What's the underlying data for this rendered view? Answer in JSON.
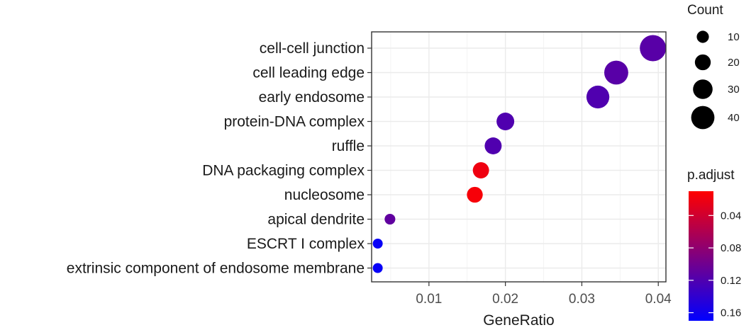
{
  "chart_data": {
    "type": "scatter",
    "xlabel": "GeneRatio",
    "ylabel": "",
    "xlim": [
      0.0025,
      0.041
    ],
    "x_ticks": [
      0.01,
      0.02,
      0.03,
      0.04
    ],
    "x_tick_labels": [
      "0.01",
      "0.02",
      "0.03",
      "0.04"
    ],
    "grid": true,
    "categories": [
      "cell-cell junction",
      "cell leading edge",
      "early endosome",
      "protein-DNA complex",
      "ruffle",
      "DNA packaging complex",
      "nucleosome",
      "apical dendrite",
      "ESCRT I complex",
      "extrinsic component of endosome membrane"
    ],
    "points": [
      {
        "term": "cell-cell junction",
        "gene_ratio": 0.0393,
        "count": 48,
        "p_adjust": 0.115
      },
      {
        "term": "cell leading edge",
        "gene_ratio": 0.0345,
        "count": 42,
        "p_adjust": 0.115
      },
      {
        "term": "early endosome",
        "gene_ratio": 0.0321,
        "count": 39,
        "p_adjust": 0.12
      },
      {
        "term": "protein-DNA complex",
        "gene_ratio": 0.02,
        "count": 25,
        "p_adjust": 0.12
      },
      {
        "term": "ruffle",
        "gene_ratio": 0.0184,
        "count": 23,
        "p_adjust": 0.12
      },
      {
        "term": "DNA packaging complex",
        "gene_ratio": 0.0168,
        "count": 21,
        "p_adjust": 0.02
      },
      {
        "term": "nucleosome",
        "gene_ratio": 0.016,
        "count": 20,
        "p_adjust": 0.015
      },
      {
        "term": "apical dendrite",
        "gene_ratio": 0.0049,
        "count": 6,
        "p_adjust": 0.11
      },
      {
        "term": "ESCRT I complex",
        "gene_ratio": 0.0033,
        "count": 4,
        "p_adjust": 0.165
      },
      {
        "term": "extrinsic component of endosome membrane",
        "gene_ratio": 0.0033,
        "count": 4,
        "p_adjust": 0.165
      }
    ],
    "legend_size": {
      "title": "Count",
      "values": [
        10,
        20,
        30,
        40
      ],
      "labels": [
        "10",
        "20",
        "30",
        "40"
      ]
    },
    "legend_color": {
      "title": "p.adjust",
      "range": [
        0.01,
        0.17
      ],
      "ticks": [
        0.04,
        0.08,
        0.12,
        0.16
      ],
      "tick_labels": [
        "0.04",
        "0.08",
        "0.12",
        "0.16"
      ],
      "low_color": "#FF0000",
      "high_color": "#0000FF"
    },
    "legend_position": "right"
  }
}
